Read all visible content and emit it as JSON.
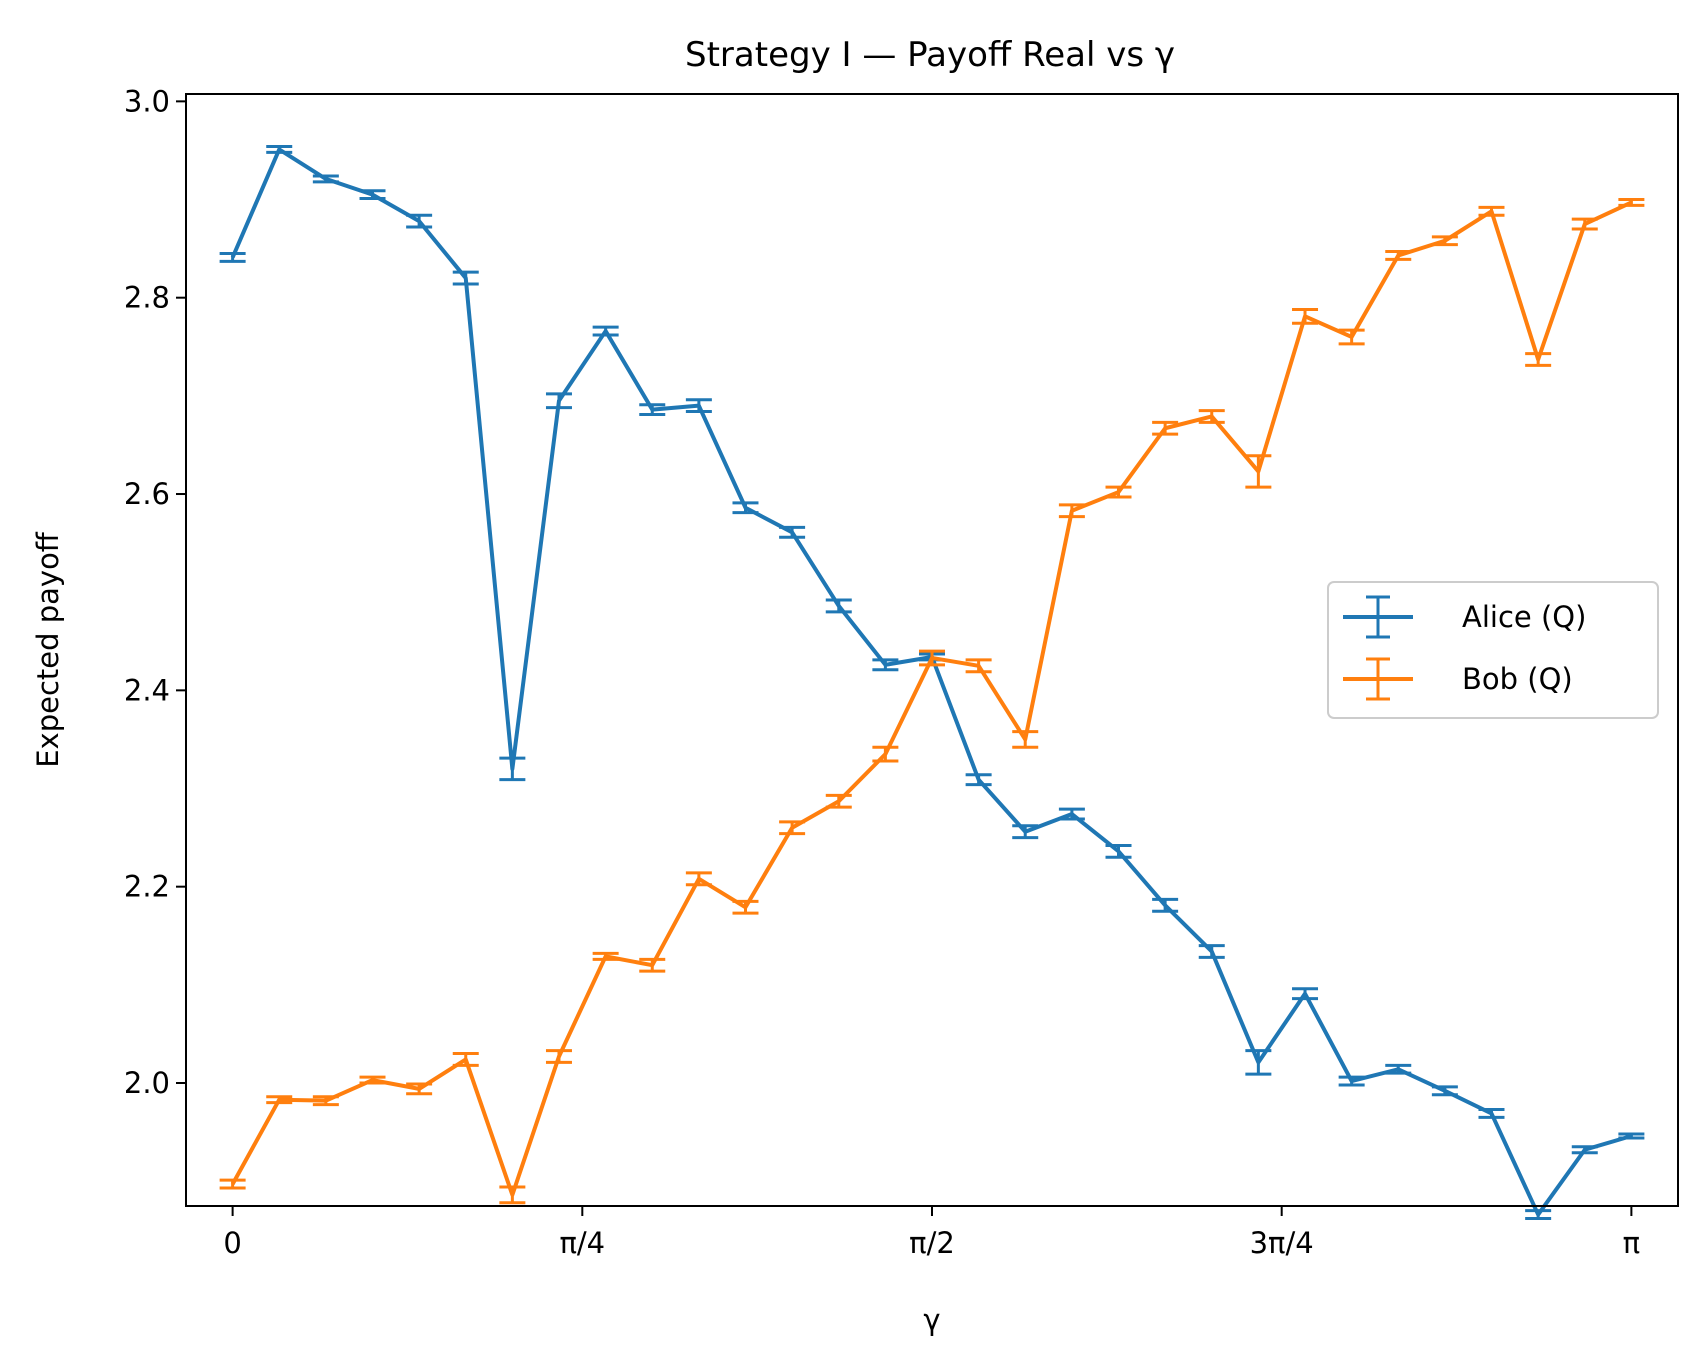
{
  "chart_data": {
    "type": "line",
    "title": "Strategy I — Payoff Real vs γ",
    "xlabel": "γ",
    "ylabel": "Expected payoff",
    "x_unit": "radians",
    "xlim": [
      -0.1047,
      3.2463
    ],
    "ylim": [
      1.8747,
      3.0075
    ],
    "xticks": [
      {
        "value": 0,
        "label": "0"
      },
      {
        "value": 0.7854,
        "label": "π/4"
      },
      {
        "value": 1.5708,
        "label": "π/2"
      },
      {
        "value": 2.3562,
        "label": "3π/4"
      },
      {
        "value": 3.1416,
        "label": "π"
      }
    ],
    "yticks": [
      {
        "value": 2.0,
        "label": "2.0"
      },
      {
        "value": 2.2,
        "label": "2.2"
      },
      {
        "value": 2.4,
        "label": "2.4"
      },
      {
        "value": 2.6,
        "label": "2.6"
      },
      {
        "value": 2.8,
        "label": "2.8"
      },
      {
        "value": 3.0,
        "label": "3.0"
      }
    ],
    "grid": false,
    "legend_position": "center-right",
    "x": [
      0,
      0.1047,
      0.2094,
      0.3142,
      0.4189,
      0.5236,
      0.6283,
      0.733,
      0.8378,
      0.9425,
      1.0472,
      1.1519,
      1.2566,
      1.3614,
      1.4661,
      1.5708,
      1.6755,
      1.7802,
      1.885,
      1.9897,
      2.0944,
      2.1991,
      2.3038,
      2.4086,
      2.5133,
      2.618,
      2.7227,
      2.8274,
      2.9322,
      3.0369,
      3.1416
    ],
    "series": [
      {
        "name": "Alice (Q)",
        "color": "#1f77b4",
        "values": [
          2.841,
          2.951,
          2.921,
          2.905,
          2.878,
          2.82,
          2.32,
          2.695,
          2.766,
          2.686,
          2.69,
          2.586,
          2.561,
          2.486,
          2.426,
          2.434,
          2.309,
          2.256,
          2.274,
          2.236,
          2.181,
          2.134,
          2.021,
          2.091,
          2.002,
          2.014,
          1.992,
          1.969,
          1.866,
          1.932,
          1.946
        ],
        "errors": [
          0.004,
          0.003,
          0.003,
          0.004,
          0.006,
          0.006,
          0.011,
          0.007,
          0.004,
          0.005,
          0.006,
          0.005,
          0.005,
          0.006,
          0.005,
          0.003,
          0.005,
          0.006,
          0.005,
          0.006,
          0.006,
          0.006,
          0.012,
          0.005,
          0.004,
          0.004,
          0.004,
          0.004,
          0.004,
          0.003,
          0.002
        ]
      },
      {
        "name": "Bob (Q)",
        "color": "#ff7f0e",
        "values": [
          1.897,
          1.983,
          1.982,
          2.003,
          1.994,
          2.024,
          1.886,
          2.027,
          2.129,
          2.12,
          2.208,
          2.179,
          2.26,
          2.287,
          2.335,
          2.433,
          2.425,
          2.35,
          2.583,
          2.602,
          2.667,
          2.679,
          2.623,
          2.781,
          2.76,
          2.843,
          2.858,
          2.888,
          2.737,
          2.875,
          2.897
        ],
        "errors": [
          0.004,
          0.003,
          0.004,
          0.003,
          0.005,
          0.006,
          0.008,
          0.006,
          0.003,
          0.006,
          0.006,
          0.006,
          0.006,
          0.006,
          0.007,
          0.007,
          0.006,
          0.008,
          0.006,
          0.005,
          0.006,
          0.006,
          0.016,
          0.007,
          0.007,
          0.004,
          0.004,
          0.004,
          0.006,
          0.005,
          0.003
        ]
      }
    ]
  }
}
